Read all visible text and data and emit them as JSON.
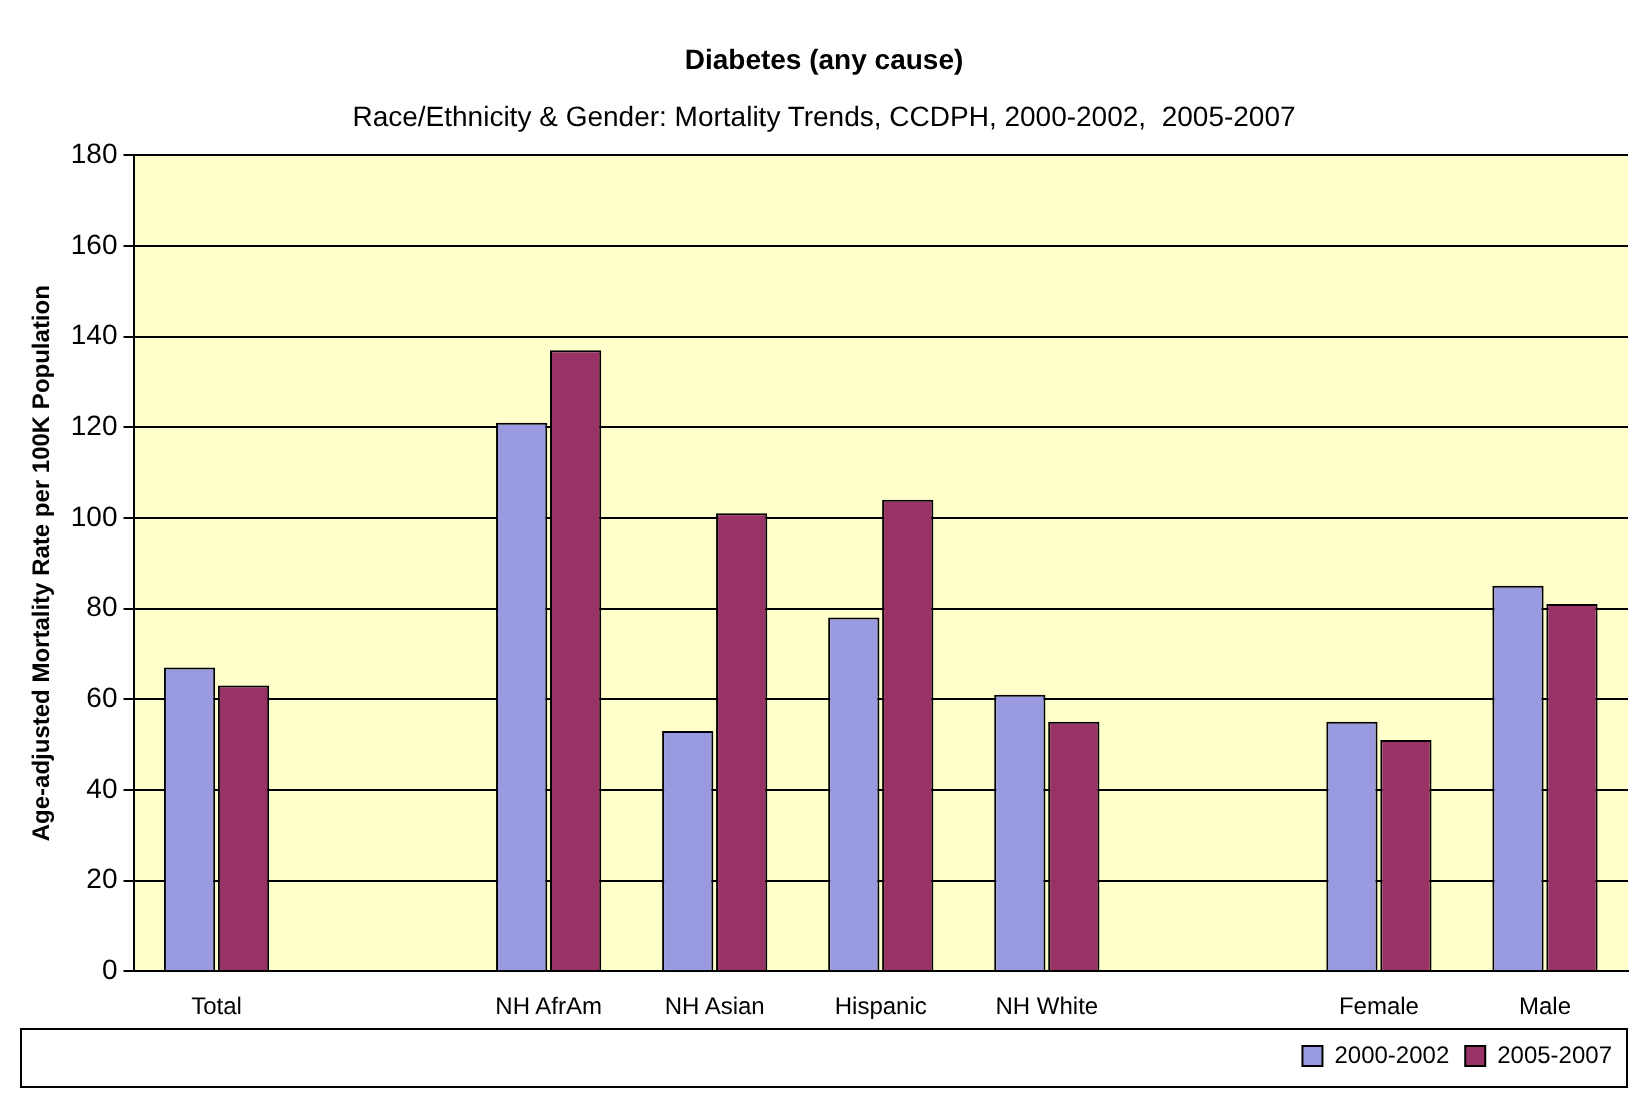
{
  "chart_data": {
    "type": "bar",
    "title": "Diabetes (any cause)",
    "subtitle": "Race/Ethnicity & Gender: Mortality Trends, CCDPH, 2000-2002,  2005-2007",
    "ylabel": "Age-adjusted Mortality Rate per 100K Population",
    "categories": [
      "Total",
      null,
      "NH AfrAm",
      "NH Asian",
      "Hispanic",
      "NH White",
      null,
      "Female",
      "Male"
    ],
    "series": [
      {
        "name": "2000-2002",
        "color": "#9a9ae0",
        "values": [
          67,
          null,
          121,
          53,
          78,
          61,
          null,
          55,
          85
        ]
      },
      {
        "name": "2005-2007",
        "color": "#993366",
        "values": [
          63,
          null,
          137,
          101,
          104,
          55,
          null,
          51,
          81
        ]
      }
    ],
    "ylim": [
      0,
      180
    ],
    "yticks": [
      0,
      20,
      40,
      60,
      80,
      100,
      120,
      140,
      160,
      180
    ],
    "grid": "y",
    "legend": "bottom right"
  }
}
